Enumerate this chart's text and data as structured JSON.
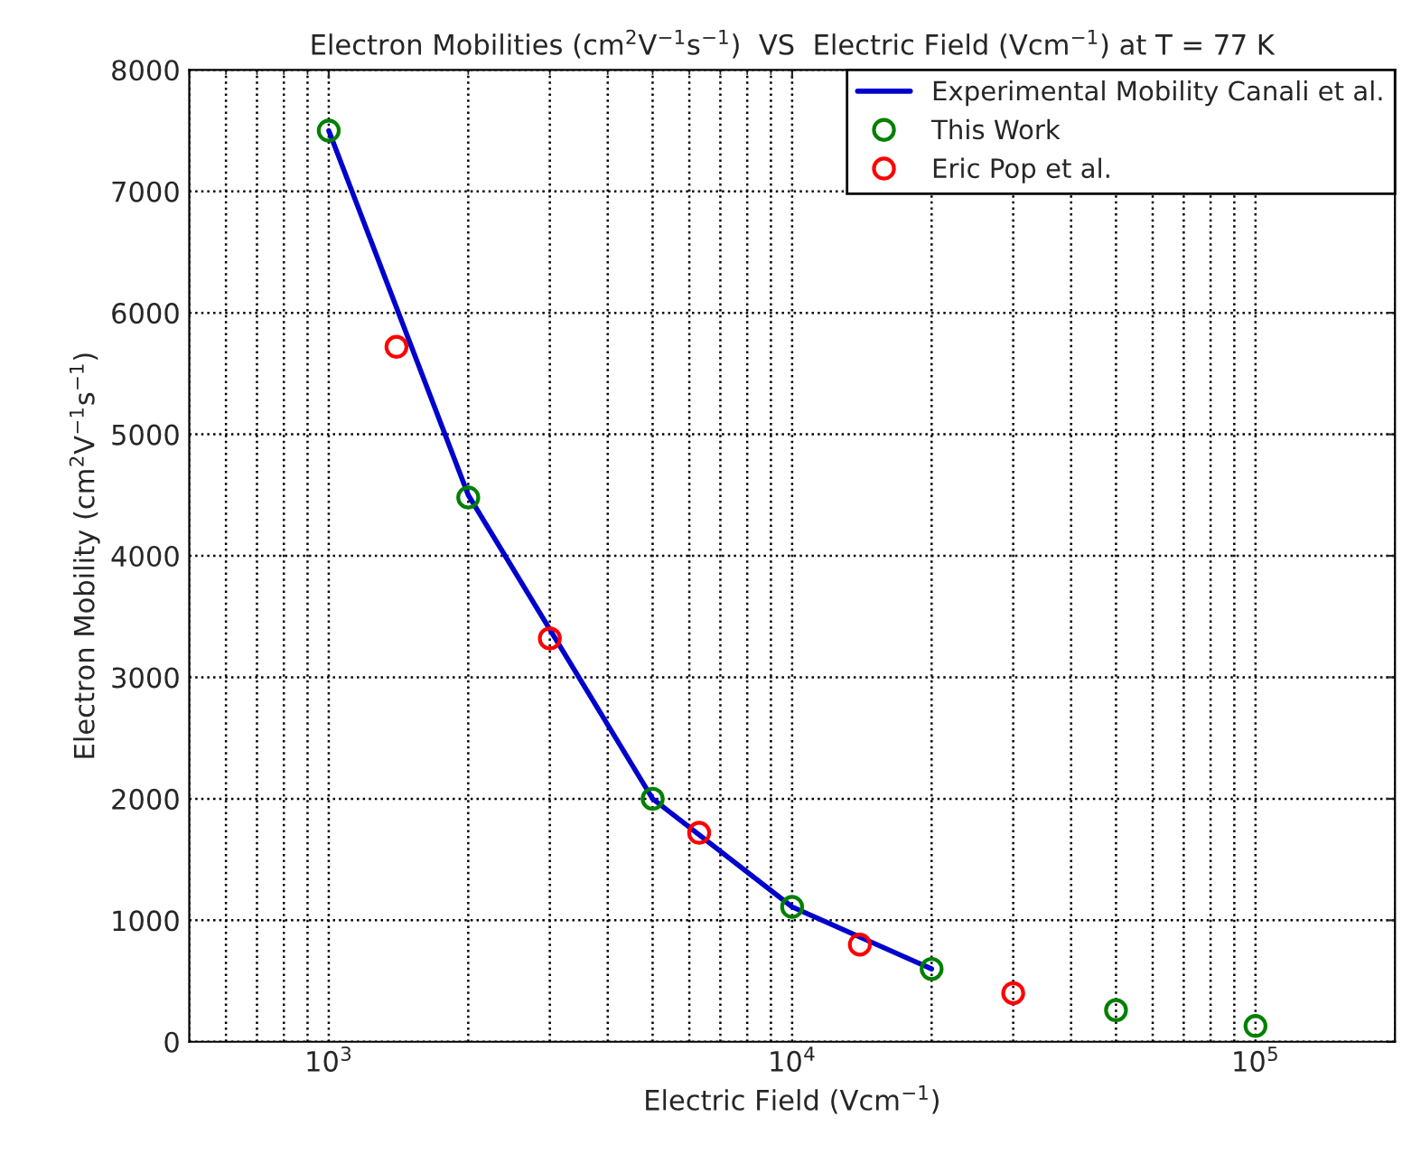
{
  "chart_data": {
    "type": "line",
    "title": "Electron Mobilities (cm$^{2}$V$^{−1}$s$^{−1}$)  VS  Electric Field (Vcm$^{−1}$) at T = 77 K",
    "xlabel": "Electric Field (Vcm$^{−1}$)",
    "ylabel": "Electron Mobility (cm$^{2}$V$^{−1}$s$^{−1}$)",
    "log": "x",
    "xlim": [
      500,
      200000
    ],
    "xticks": [
      {
        "value": 1000,
        "label": "10$^{3}$"
      },
      {
        "value": 10000,
        "label": "10$^{4}$"
      },
      {
        "value": 100000,
        "label": "10$^{5}$"
      }
    ],
    "ylim": [
      0,
      8000
    ],
    "yticks": [
      0,
      1000,
      2000,
      3000,
      4000,
      5000,
      6000,
      7000,
      8000
    ],
    "grid": true,
    "legend": "top right",
    "series": [
      {
        "name": "Experimental Mobility Canali et al.",
        "color": "#0000cc",
        "marker": "none",
        "line_style": "solid",
        "x": [
          1000,
          2000,
          5000,
          10000,
          20000
        ],
        "values": [
          7500,
          4500,
          2000,
          1110,
          600
        ]
      },
      {
        "name": "This Work",
        "type": "scatter",
        "color": "#008000",
        "marker": "circle",
        "x": [
          1000,
          2000,
          5000,
          10000,
          20000,
          50000,
          100000
        ],
        "values": [
          7500,
          4480,
          2000,
          1110,
          600,
          260,
          130
        ]
      },
      {
        "name": "Eric Pop et al.",
        "type": "scatter",
        "color": "#ff0000",
        "marker": "circle",
        "x": [
          1400,
          3000,
          6300,
          14000,
          30000
        ],
        "values": [
          5720,
          3320,
          1720,
          800,
          400
        ]
      }
    ]
  }
}
